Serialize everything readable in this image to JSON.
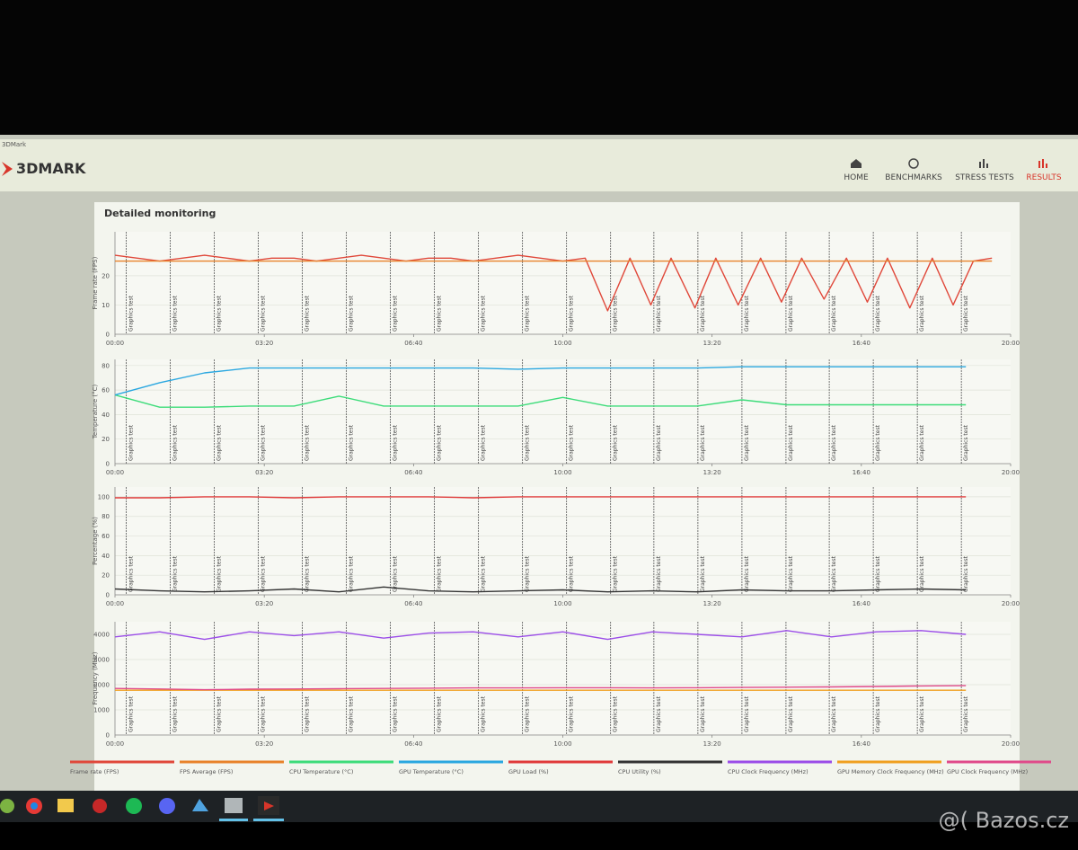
{
  "window_title": "3DMark",
  "logo": "3DMARK",
  "nav": [
    "HOME",
    "BENCHMARKS",
    "STRESS TESTS",
    "RESULTS"
  ],
  "panel_title": "Detailed monitoring",
  "test_markers": {
    "label": "Graphics test",
    "x": [
      15,
      74,
      133,
      192,
      251,
      310,
      369,
      428,
      487,
      546,
      605,
      664,
      722,
      781,
      840,
      899,
      957,
      1016,
      1075,
      1134
    ]
  },
  "watermark": "@( Bazos.cz",
  "chart_data": [
    {
      "type": "line",
      "y_label": "Frame rate (FPS)",
      "grid": true,
      "x": [
        0,
        30,
        60,
        90,
        120,
        150,
        180,
        210,
        240,
        270,
        300,
        330,
        360,
        390,
        420,
        450,
        480,
        510,
        540,
        570,
        600,
        630,
        660,
        690,
        718,
        745,
        777,
        805,
        835,
        865,
        893,
        920,
        950,
        980,
        1008,
        1035,
        1065,
        1095,
        1123,
        1150,
        1175
      ],
      "xlim": [
        0,
        1200
      ],
      "xticks": [
        {
          "value": 0,
          "label": "00:00"
        },
        {
          "value": 200,
          "label": "03:20"
        },
        {
          "value": 400,
          "label": "06:40"
        },
        {
          "value": 600,
          "label": "10:00"
        },
        {
          "value": 800,
          "label": "13:20"
        },
        {
          "value": 1000,
          "label": "16:40"
        },
        {
          "value": 1200,
          "label": "20:00"
        }
      ],
      "ylim": [
        0,
        35
      ],
      "yticks": [
        0,
        10,
        20
      ],
      "series": [
        {
          "name": "Frame rate (FPS)",
          "color": "#e0483a",
          "values": [
            27,
            26,
            25,
            26,
            27,
            26,
            25,
            26,
            26,
            25,
            26,
            27,
            26,
            25,
            26,
            26,
            25,
            26,
            27,
            26,
            25,
            26,
            8,
            26,
            10,
            26,
            9,
            26,
            10,
            26,
            11,
            26,
            12,
            26,
            11,
            26,
            9,
            26,
            10,
            25,
            26
          ]
        },
        {
          "name": "FPS Average (FPS)",
          "color": "#e8822a",
          "values": [
            25,
            25,
            25,
            25,
            25,
            25,
            25,
            25,
            25,
            25,
            25,
            25,
            25,
            25,
            25,
            25,
            25,
            25,
            25,
            25,
            25,
            25,
            25,
            25,
            25,
            25,
            25,
            25,
            25,
            25,
            25,
            25,
            25,
            25,
            25,
            25,
            25,
            25,
            25,
            25,
            25
          ]
        }
      ]
    },
    {
      "type": "line",
      "y_label": "Temperature (°C)",
      "grid": true,
      "x": [
        0,
        60,
        120,
        180,
        240,
        300,
        360,
        420,
        480,
        540,
        600,
        660,
        720,
        780,
        840,
        900,
        960,
        1020,
        1080,
        1140
      ],
      "xlim": [
        0,
        1200
      ],
      "xticks": [
        {
          "value": 0,
          "label": "00:00"
        },
        {
          "value": 200,
          "label": "03:20"
        },
        {
          "value": 400,
          "label": "06:40"
        },
        {
          "value": 600,
          "label": "10:00"
        },
        {
          "value": 800,
          "label": "13:20"
        },
        {
          "value": 1000,
          "label": "16:40"
        },
        {
          "value": 1200,
          "label": "20:00"
        }
      ],
      "ylim": [
        0,
        85
      ],
      "yticks": [
        0,
        20,
        40,
        60,
        80
      ],
      "series": [
        {
          "name": "CPU Temperature (°C)",
          "color": "#3ddc7a",
          "values": [
            56,
            46,
            46,
            47,
            47,
            55,
            47,
            47,
            47,
            47,
            54,
            47,
            47,
            47,
            52,
            48,
            48,
            48,
            48,
            48
          ]
        },
        {
          "name": "GPU Temperature (°C)",
          "color": "#2aa7e0",
          "values": [
            56,
            66,
            74,
            78,
            78,
            78,
            78,
            78,
            78,
            77,
            78,
            78,
            78,
            78,
            79,
            79,
            79,
            79,
            79,
            79
          ]
        }
      ]
    },
    {
      "type": "line",
      "y_label": "Percentage (%)",
      "grid": true,
      "x": [
        0,
        60,
        120,
        180,
        240,
        300,
        360,
        420,
        480,
        540,
        600,
        660,
        720,
        780,
        840,
        900,
        960,
        1020,
        1080,
        1140
      ],
      "xlim": [
        0,
        1200
      ],
      "xticks": [
        {
          "value": 0,
          "label": "00:00"
        },
        {
          "value": 200,
          "label": "03:20"
        },
        {
          "value": 400,
          "label": "06:40"
        },
        {
          "value": 600,
          "label": "10:00"
        },
        {
          "value": 800,
          "label": "13:20"
        },
        {
          "value": 1000,
          "label": "16:40"
        },
        {
          "value": 1200,
          "label": "20:00"
        }
      ],
      "ylim": [
        0,
        110
      ],
      "yticks": [
        0,
        20,
        40,
        60,
        80,
        100
      ],
      "series": [
        {
          "name": "GPU Load (%)",
          "color": "#e03a3a",
          "values": [
            99,
            99,
            100,
            100,
            99,
            100,
            100,
            100,
            99,
            100,
            100,
            100,
            100,
            100,
            100,
            100,
            100,
            100,
            100,
            100
          ]
        },
        {
          "name": "CPU Utility (%)",
          "color": "#333333",
          "values": [
            6,
            4,
            3,
            4,
            6,
            3,
            8,
            4,
            3,
            4,
            5,
            3,
            4,
            3,
            5,
            4,
            4,
            5,
            6,
            5
          ]
        }
      ]
    },
    {
      "type": "line",
      "y_label": "Frequency (MHz)",
      "grid": true,
      "x": [
        0,
        60,
        120,
        180,
        240,
        300,
        360,
        420,
        480,
        540,
        600,
        660,
        720,
        780,
        840,
        900,
        960,
        1020,
        1080,
        1140
      ],
      "xlim": [
        0,
        1200
      ],
      "xticks": [
        {
          "value": 0,
          "label": "00:00"
        },
        {
          "value": 200,
          "label": "03:20"
        },
        {
          "value": 400,
          "label": "06:40"
        },
        {
          "value": 600,
          "label": "10:00"
        },
        {
          "value": 800,
          "label": "13:20"
        },
        {
          "value": 1000,
          "label": "16:40"
        },
        {
          "value": 1200,
          "label": "20:00"
        }
      ],
      "ylim": [
        0,
        4500
      ],
      "yticks": [
        0,
        1000,
        2000,
        3000,
        4000
      ],
      "series": [
        {
          "name": "CPU Clock Frequency (MHz)",
          "color": "#9b4de8",
          "values": [
            3900,
            4100,
            3800,
            4100,
            3950,
            4100,
            3850,
            4050,
            4100,
            3900,
            4100,
            3800,
            4100,
            4000,
            3900,
            4150,
            3900,
            4100,
            4150,
            4000
          ]
        },
        {
          "name": "GPU Memory Clock Frequency (MHz)",
          "color": "#f0a020",
          "values": [
            1780,
            1780,
            1780,
            1780,
            1780,
            1780,
            1780,
            1780,
            1780,
            1780,
            1780,
            1780,
            1780,
            1780,
            1780,
            1780,
            1780,
            1780,
            1780,
            1780
          ]
        },
        {
          "name": "GPU Clock Frequency (MHz)",
          "color": "#e04a8a",
          "values": [
            1850,
            1830,
            1800,
            1820,
            1830,
            1840,
            1850,
            1860,
            1870,
            1870,
            1880,
            1880,
            1870,
            1880,
            1890,
            1900,
            1910,
            1930,
            1950,
            1960
          ]
        }
      ]
    }
  ]
}
